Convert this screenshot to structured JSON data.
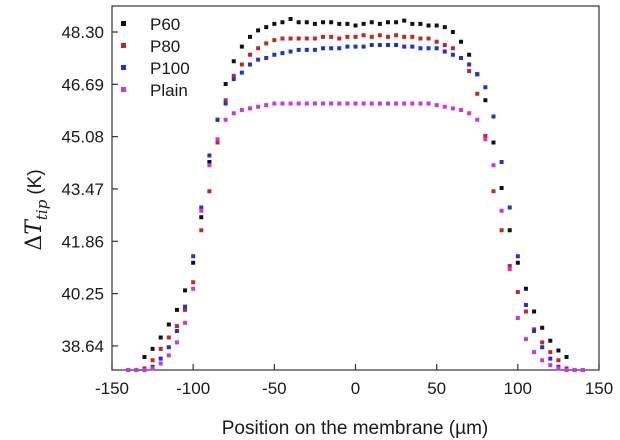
{
  "chart_data": {
    "type": "scatter",
    "xlabel": "Position on the membrane (µm)",
    "ylabel": {
      "delta": "Δ",
      "symbol": "T",
      "subscript": "tip",
      "unit": "(K)"
    },
    "xlim": [
      -150,
      150
    ],
    "ylim": [
      37.9,
      49.1
    ],
    "xticks": [
      "-150",
      "-100",
      "-50",
      "0",
      "50",
      "100",
      "150"
    ],
    "yticks": [
      "38.64",
      "40.25",
      "41.86",
      "43.47",
      "45.08",
      "46.69",
      "48.30"
    ],
    "grid": false,
    "legend_position": "top-left",
    "series": [
      {
        "name": "P60",
        "color": "#111111",
        "x": [
          -130,
          -125,
          -120,
          -115,
          -110,
          -105,
          -100,
          -95,
          -90,
          -85,
          -80,
          -75,
          -70,
          -65,
          -60,
          -55,
          -50,
          -45,
          -40,
          -35,
          -30,
          -25,
          -20,
          -15,
          -10,
          -5,
          0,
          5,
          10,
          15,
          20,
          25,
          30,
          35,
          40,
          45,
          50,
          55,
          60,
          65,
          70,
          75,
          80,
          85,
          90,
          95,
          100,
          105,
          110,
          115,
          120,
          125,
          130
        ],
        "y": [
          38.3,
          38.55,
          38.9,
          39.3,
          39.75,
          40.35,
          41.2,
          42.6,
          44.3,
          45.6,
          46.7,
          47.4,
          47.85,
          48.15,
          48.35,
          48.45,
          48.55,
          48.6,
          48.7,
          48.6,
          48.6,
          48.55,
          48.6,
          48.6,
          48.55,
          48.55,
          48.5,
          48.55,
          48.6,
          48.55,
          48.6,
          48.6,
          48.65,
          48.55,
          48.55,
          48.5,
          48.5,
          48.45,
          48.3,
          48.0,
          47.6,
          47.0,
          46.2,
          44.9,
          43.5,
          42.2,
          41.2,
          40.4,
          39.7,
          39.2,
          38.8,
          38.5,
          38.3
        ]
      },
      {
        "name": "P80",
        "color": "#cc2222",
        "x": [
          -130,
          -125,
          -120,
          -115,
          -110,
          -105,
          -100,
          -95,
          -90,
          -85,
          -80,
          -75,
          -70,
          -65,
          -60,
          -55,
          -50,
          -45,
          -40,
          -35,
          -30,
          -25,
          -20,
          -15,
          -10,
          -5,
          0,
          5,
          10,
          15,
          20,
          25,
          30,
          35,
          40,
          45,
          50,
          55,
          60,
          65,
          70,
          75,
          80,
          85,
          90,
          95,
          100,
          105,
          110,
          115,
          120,
          125,
          130
        ],
        "y": [
          37.95,
          38.2,
          38.55,
          38.9,
          39.25,
          39.75,
          40.6,
          42.2,
          43.4,
          44.9,
          46.2,
          46.95,
          47.3,
          47.6,
          47.8,
          47.95,
          48.05,
          48.1,
          48.1,
          48.1,
          48.1,
          48.1,
          48.15,
          48.15,
          48.1,
          48.15,
          48.15,
          48.2,
          48.15,
          48.2,
          48.15,
          48.2,
          48.15,
          48.15,
          48.1,
          48.1,
          48.0,
          47.9,
          47.8,
          47.5,
          47.1,
          46.4,
          45.1,
          43.4,
          42.2,
          41.1,
          40.3,
          39.7,
          39.15,
          38.75,
          38.45,
          38.2,
          37.95
        ]
      },
      {
        "name": "P100",
        "color": "#1a33dd",
        "x": [
          -140,
          -135,
          -130,
          -125,
          -120,
          -115,
          -110,
          -105,
          -100,
          -95,
          -90,
          -85,
          -80,
          -75,
          -70,
          -65,
          -60,
          -55,
          -50,
          -45,
          -40,
          -35,
          -30,
          -25,
          -20,
          -15,
          -10,
          -5,
          0,
          5,
          10,
          15,
          20,
          25,
          30,
          35,
          40,
          45,
          50,
          55,
          60,
          65,
          70,
          75,
          80,
          85,
          90,
          95,
          100,
          105,
          110,
          115,
          120,
          125,
          130,
          135,
          140
        ],
        "y": [
          37.9,
          37.9,
          37.9,
          38.0,
          38.25,
          38.6,
          39.1,
          39.85,
          41.4,
          42.9,
          44.5,
          45.6,
          46.1,
          46.85,
          47.05,
          47.3,
          47.45,
          47.5,
          47.6,
          47.65,
          47.7,
          47.75,
          47.75,
          47.75,
          47.8,
          47.8,
          47.8,
          47.85,
          47.85,
          47.85,
          47.9,
          47.9,
          47.9,
          47.9,
          47.85,
          47.85,
          47.8,
          47.8,
          47.8,
          47.7,
          47.6,
          47.5,
          47.3,
          47.0,
          46.6,
          45.7,
          44.3,
          42.9,
          41.4,
          39.9,
          39.1,
          38.6,
          38.25,
          38.0,
          37.9,
          37.9,
          37.9
        ]
      },
      {
        "name": "Plain",
        "color": "#cc33ee",
        "x": [
          -140,
          -135,
          -130,
          -125,
          -120,
          -115,
          -110,
          -105,
          -100,
          -95,
          -90,
          -85,
          -80,
          -75,
          -70,
          -65,
          -60,
          -55,
          -50,
          -45,
          -40,
          -35,
          -30,
          -25,
          -20,
          -15,
          -10,
          -5,
          0,
          5,
          10,
          15,
          20,
          25,
          30,
          35,
          40,
          45,
          50,
          55,
          60,
          65,
          70,
          75,
          80,
          85,
          90,
          95,
          100,
          105,
          110,
          115,
          120,
          125,
          130,
          135,
          140
        ],
        "y": [
          37.9,
          37.9,
          37.9,
          37.95,
          38.1,
          38.35,
          38.75,
          39.35,
          40.4,
          42.8,
          44.2,
          45.0,
          45.6,
          45.8,
          45.9,
          45.95,
          46.0,
          46.05,
          46.1,
          46.1,
          46.1,
          46.1,
          46.1,
          46.1,
          46.1,
          46.1,
          46.1,
          46.1,
          46.1,
          46.1,
          46.1,
          46.1,
          46.1,
          46.1,
          46.1,
          46.1,
          46.1,
          46.1,
          46.05,
          46.0,
          45.95,
          45.9,
          45.8,
          45.6,
          45.0,
          44.2,
          42.8,
          41.0,
          39.5,
          38.85,
          38.45,
          38.2,
          38.05,
          37.95,
          37.9,
          37.9,
          37.9
        ]
      }
    ]
  }
}
